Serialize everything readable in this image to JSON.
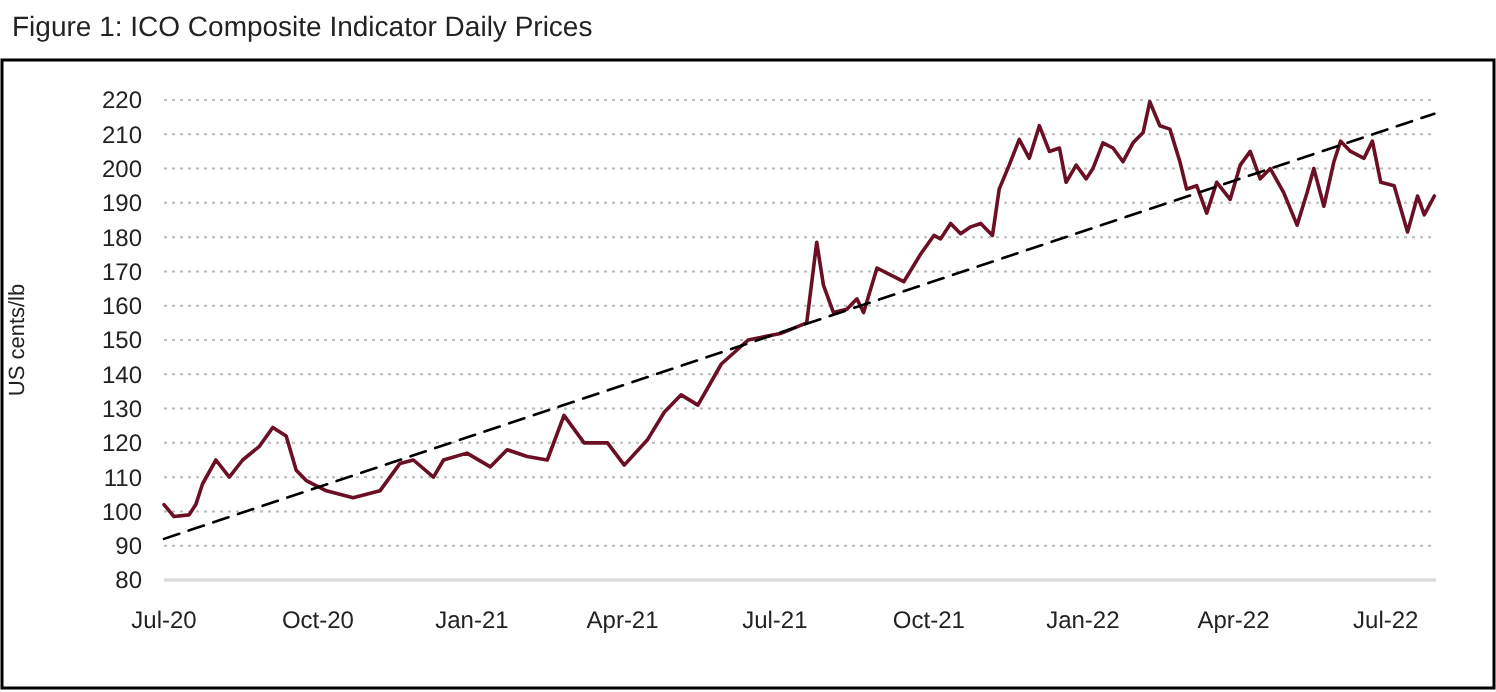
{
  "chart_data": {
    "type": "line",
    "title": "Figure 1: ICO Composite Indicator Daily Prices",
    "ylabel": "US cents/lb",
    "x": [
      "2020-07-01",
      "2020-07-07",
      "2020-07-16",
      "2020-07-20",
      "2020-07-24",
      "2020-08-01",
      "2020-08-09",
      "2020-08-17",
      "2020-08-27",
      "2020-09-04",
      "2020-09-12",
      "2020-09-18",
      "2020-09-24",
      "2020-10-06",
      "2020-10-22",
      "2020-11-07",
      "2020-11-19",
      "2020-11-27",
      "2020-12-09",
      "2020-12-15",
      "2020-12-29",
      "2021-01-12",
      "2021-01-22",
      "2021-02-03",
      "2021-02-15",
      "2021-02-25",
      "2021-03-09",
      "2021-03-23",
      "2021-04-02",
      "2021-04-16",
      "2021-04-26",
      "2021-05-06",
      "2021-05-16",
      "2021-05-30",
      "2021-06-15",
      "2021-07-05",
      "2021-07-20",
      "2021-07-26",
      "2021-07-30",
      "2021-08-05",
      "2021-08-13",
      "2021-08-19",
      "2021-08-23",
      "2021-08-31",
      "2021-09-08",
      "2021-09-16",
      "2021-09-26",
      "2021-10-04",
      "2021-10-08",
      "2021-10-14",
      "2021-10-20",
      "2021-10-26",
      "2021-11-01",
      "2021-11-08",
      "2021-11-12",
      "2021-11-18",
      "2021-11-24",
      "2021-11-30",
      "2021-12-06",
      "2021-12-12",
      "2021-12-18",
      "2021-12-22",
      "2021-12-28",
      "2022-01-03",
      "2022-01-07",
      "2022-01-13",
      "2022-01-19",
      "2022-01-25",
      "2022-01-31",
      "2022-02-06",
      "2022-02-10",
      "2022-02-16",
      "2022-02-22",
      "2022-02-28",
      "2022-03-04",
      "2022-03-10",
      "2022-03-16",
      "2022-03-22",
      "2022-03-30",
      "2022-04-05",
      "2022-04-11",
      "2022-04-17",
      "2022-04-23",
      "2022-05-01",
      "2022-05-09",
      "2022-05-15",
      "2022-05-19",
      "2022-05-25",
      "2022-05-31",
      "2022-06-04",
      "2022-06-10",
      "2022-06-18",
      "2022-06-23",
      "2022-06-28",
      "2022-07-06",
      "2022-07-14",
      "2022-07-20",
      "2022-07-24",
      "2022-07-30"
    ],
    "series": [
      {
        "color": "#6b0f24",
        "values": [
          102,
          98.5,
          99,
          102,
          108,
          115,
          110,
          115,
          119,
          124.5,
          122,
          112,
          109,
          106,
          104,
          106,
          114,
          115,
          110,
          115,
          117,
          113,
          118,
          116,
          115,
          128,
          120,
          120,
          113.5,
          121,
          129,
          134,
          131,
          143,
          150,
          152,
          155,
          178.5,
          166,
          158,
          159,
          162,
          158,
          171,
          169,
          167,
          175,
          180.5,
          179.5,
          184,
          181,
          183,
          184,
          180.5,
          194,
          201,
          208.5,
          203,
          212.5,
          205,
          206,
          196,
          201,
          197,
          200,
          207.5,
          206,
          202,
          207.5,
          210.5,
          219.5,
          212.5,
          211.5,
          202,
          194,
          195,
          187,
          196,
          191,
          201,
          205,
          197,
          200,
          193,
          183.5,
          193,
          200,
          189,
          202,
          208,
          205,
          203,
          208,
          196,
          195,
          181.5,
          192,
          186.5,
          192
        ]
      },
      {
        "type": "line",
        "line_style": "dashed",
        "color": "#000000",
        "x": [
          "2020-07-01",
          "2022-07-30"
        ],
        "values": [
          92,
          216
        ]
      }
    ],
    "xlim": [
      "2020-07-01",
      "2022-07-31"
    ],
    "xticks": [
      {
        "value": "2020-07-01",
        "label": "Jul-20"
      },
      {
        "value": "2020-10-01",
        "label": "Oct-20"
      },
      {
        "value": "2021-01-01",
        "label": "Jan-21"
      },
      {
        "value": "2021-04-01",
        "label": "Apr-21"
      },
      {
        "value": "2021-07-01",
        "label": "Jul-21"
      },
      {
        "value": "2021-10-01",
        "label": "Oct-21"
      },
      {
        "value": "2022-01-01",
        "label": "Jan-22"
      },
      {
        "value": "2022-04-01",
        "label": "Apr-22"
      },
      {
        "value": "2022-07-01",
        "label": "Jul-22"
      }
    ],
    "ylim": [
      80,
      220
    ],
    "yticks": [
      80,
      90,
      100,
      110,
      120,
      130,
      140,
      150,
      160,
      170,
      180,
      190,
      200,
      210,
      220
    ],
    "grid": "y"
  }
}
